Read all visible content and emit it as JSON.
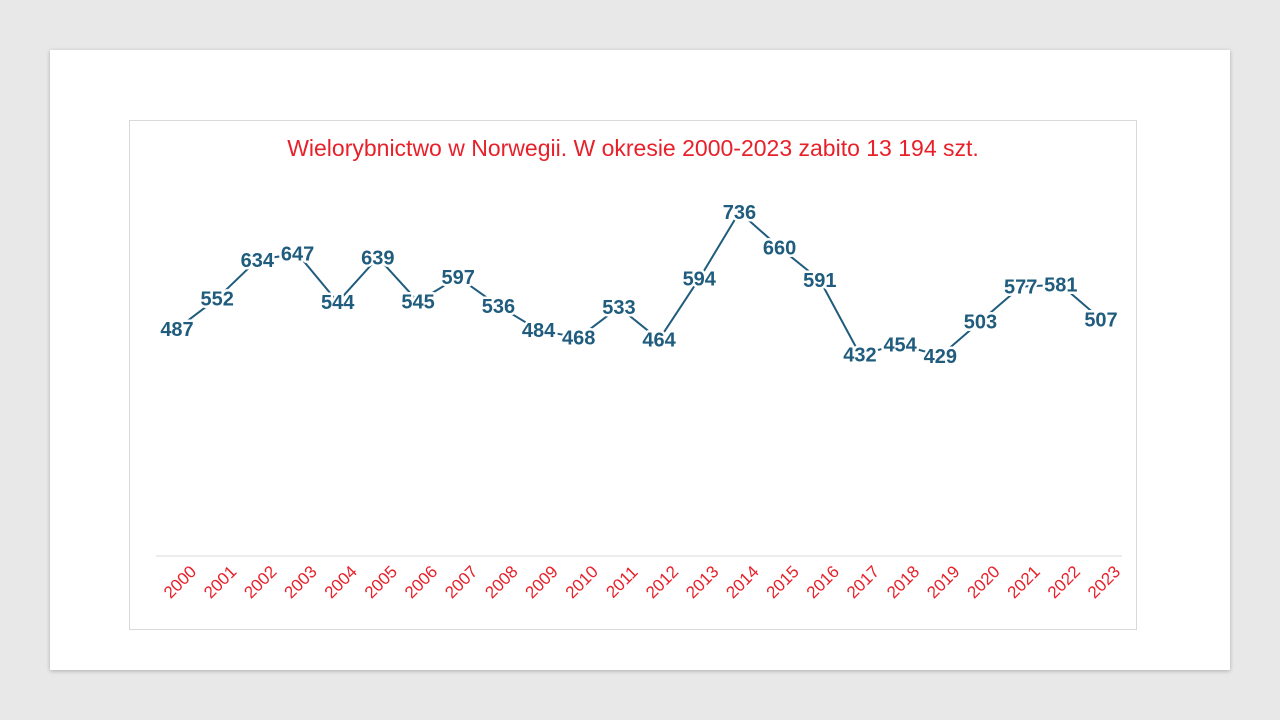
{
  "colors": {
    "title": "#e8202a",
    "line": "#1f5c7d",
    "labels": "#1f5c7d",
    "axis_labels": "#e8202a",
    "axis_line": "#d9d9d9"
  },
  "chart_data": {
    "type": "line",
    "title": "Wielorybnictwo w Norwegii. W okresie 2000-2023 zabito 13 194 szt.",
    "xlabel": "",
    "ylabel": "",
    "categories": [
      "2000",
      "2001",
      "2002",
      "2003",
      "2004",
      "2005",
      "2006",
      "2007",
      "2008",
      "2009",
      "2010",
      "2011",
      "2012",
      "2013",
      "2014",
      "2015",
      "2016",
      "2017",
      "2018",
      "2019",
      "2020",
      "2021",
      "2022",
      "2023"
    ],
    "series": [
      {
        "values": [
          487,
          552,
          634,
          647,
          544,
          639,
          545,
          597,
          536,
          484,
          468,
          533,
          464,
          594,
          736,
          660,
          591,
          432,
          454,
          429,
          503,
          577,
          581,
          507
        ]
      }
    ],
    "data_labels": true,
    "grid": false,
    "legend": "none",
    "x_label_rotation": -45
  }
}
